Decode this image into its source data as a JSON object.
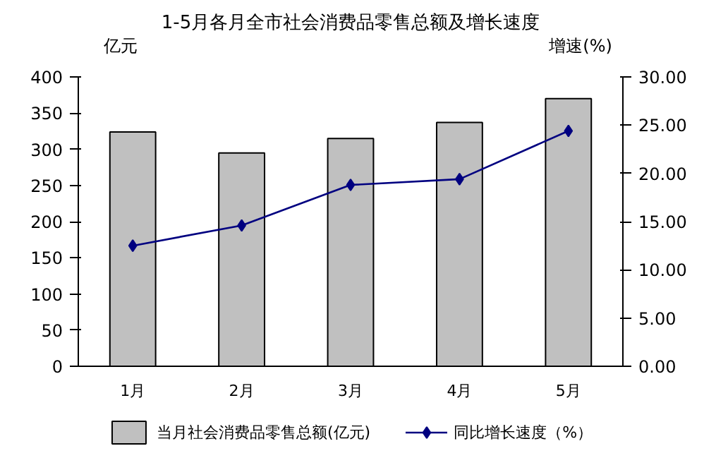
{
  "chart_data": {
    "type": "bar",
    "title": "1-5月各月全市社会消费品零售总额及增长速度",
    "categories": [
      "1月",
      "2月",
      "3月",
      "4月",
      "5月"
    ],
    "ylabel": "亿元",
    "y2label": "增速(%)",
    "ylim": [
      0,
      400
    ],
    "yticks": [
      0,
      50,
      100,
      150,
      200,
      250,
      300,
      350,
      400
    ],
    "y2lim": [
      0,
      30
    ],
    "y2ticks": [
      {
        "value": 0,
        "label": "0.00"
      },
      {
        "value": 5,
        "label": "5.00"
      },
      {
        "value": 10,
        "label": "10.00"
      },
      {
        "value": 15,
        "label": "15.00"
      },
      {
        "value": 20,
        "label": "20.00"
      },
      {
        "value": 25,
        "label": "25.00"
      },
      {
        "value": 30,
        "label": "30.00"
      }
    ],
    "series": [
      {
        "name": "当月社会消费品零售总额(亿元)",
        "type": "bar",
        "color": "#c0c0c0",
        "values": [
          324,
          295,
          315,
          337,
          370
        ]
      },
      {
        "name": "同比增长速度（%）",
        "type": "line",
        "axis": "y2",
        "color": "#000080",
        "marker": "diamond",
        "values": [
          12.5,
          14.6,
          18.8,
          19.4,
          24.4
        ]
      }
    ],
    "grid": false,
    "legend": "bottom"
  }
}
